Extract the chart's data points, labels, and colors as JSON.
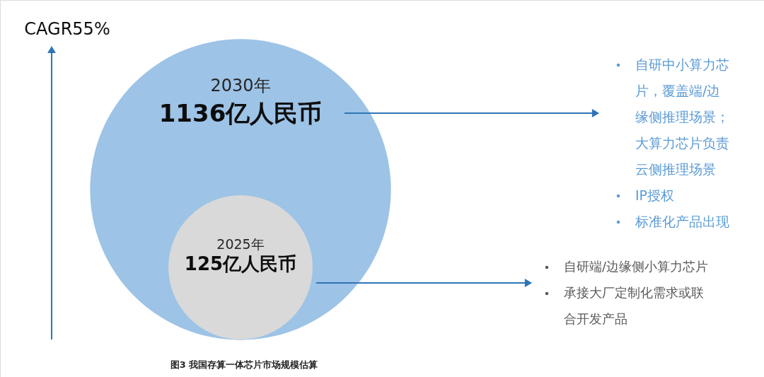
{
  "chart_data": {
    "type": "other",
    "categories": [
      "2030年",
      "2025年"
    ],
    "values": [
      1136,
      125
    ],
    "value_labels": [
      "1136亿人民币",
      "125亿人民币"
    ],
    "colors": [
      "#9dc3e6",
      "#d9d9d9"
    ],
    "annotations": [
      "CAGR55%",
      "自研中小算力芯片，覆盖端/边缘侧推理场景；大算力芯片负责云侧推理场景",
      "IP授权",
      "标准化产品出现",
      "自研端/边缘侧小算力芯片",
      "承接大厂定制化需求或联合开发产品",
      "图3 我国存算一体芯片市场规模估算"
    ]
  }
}
